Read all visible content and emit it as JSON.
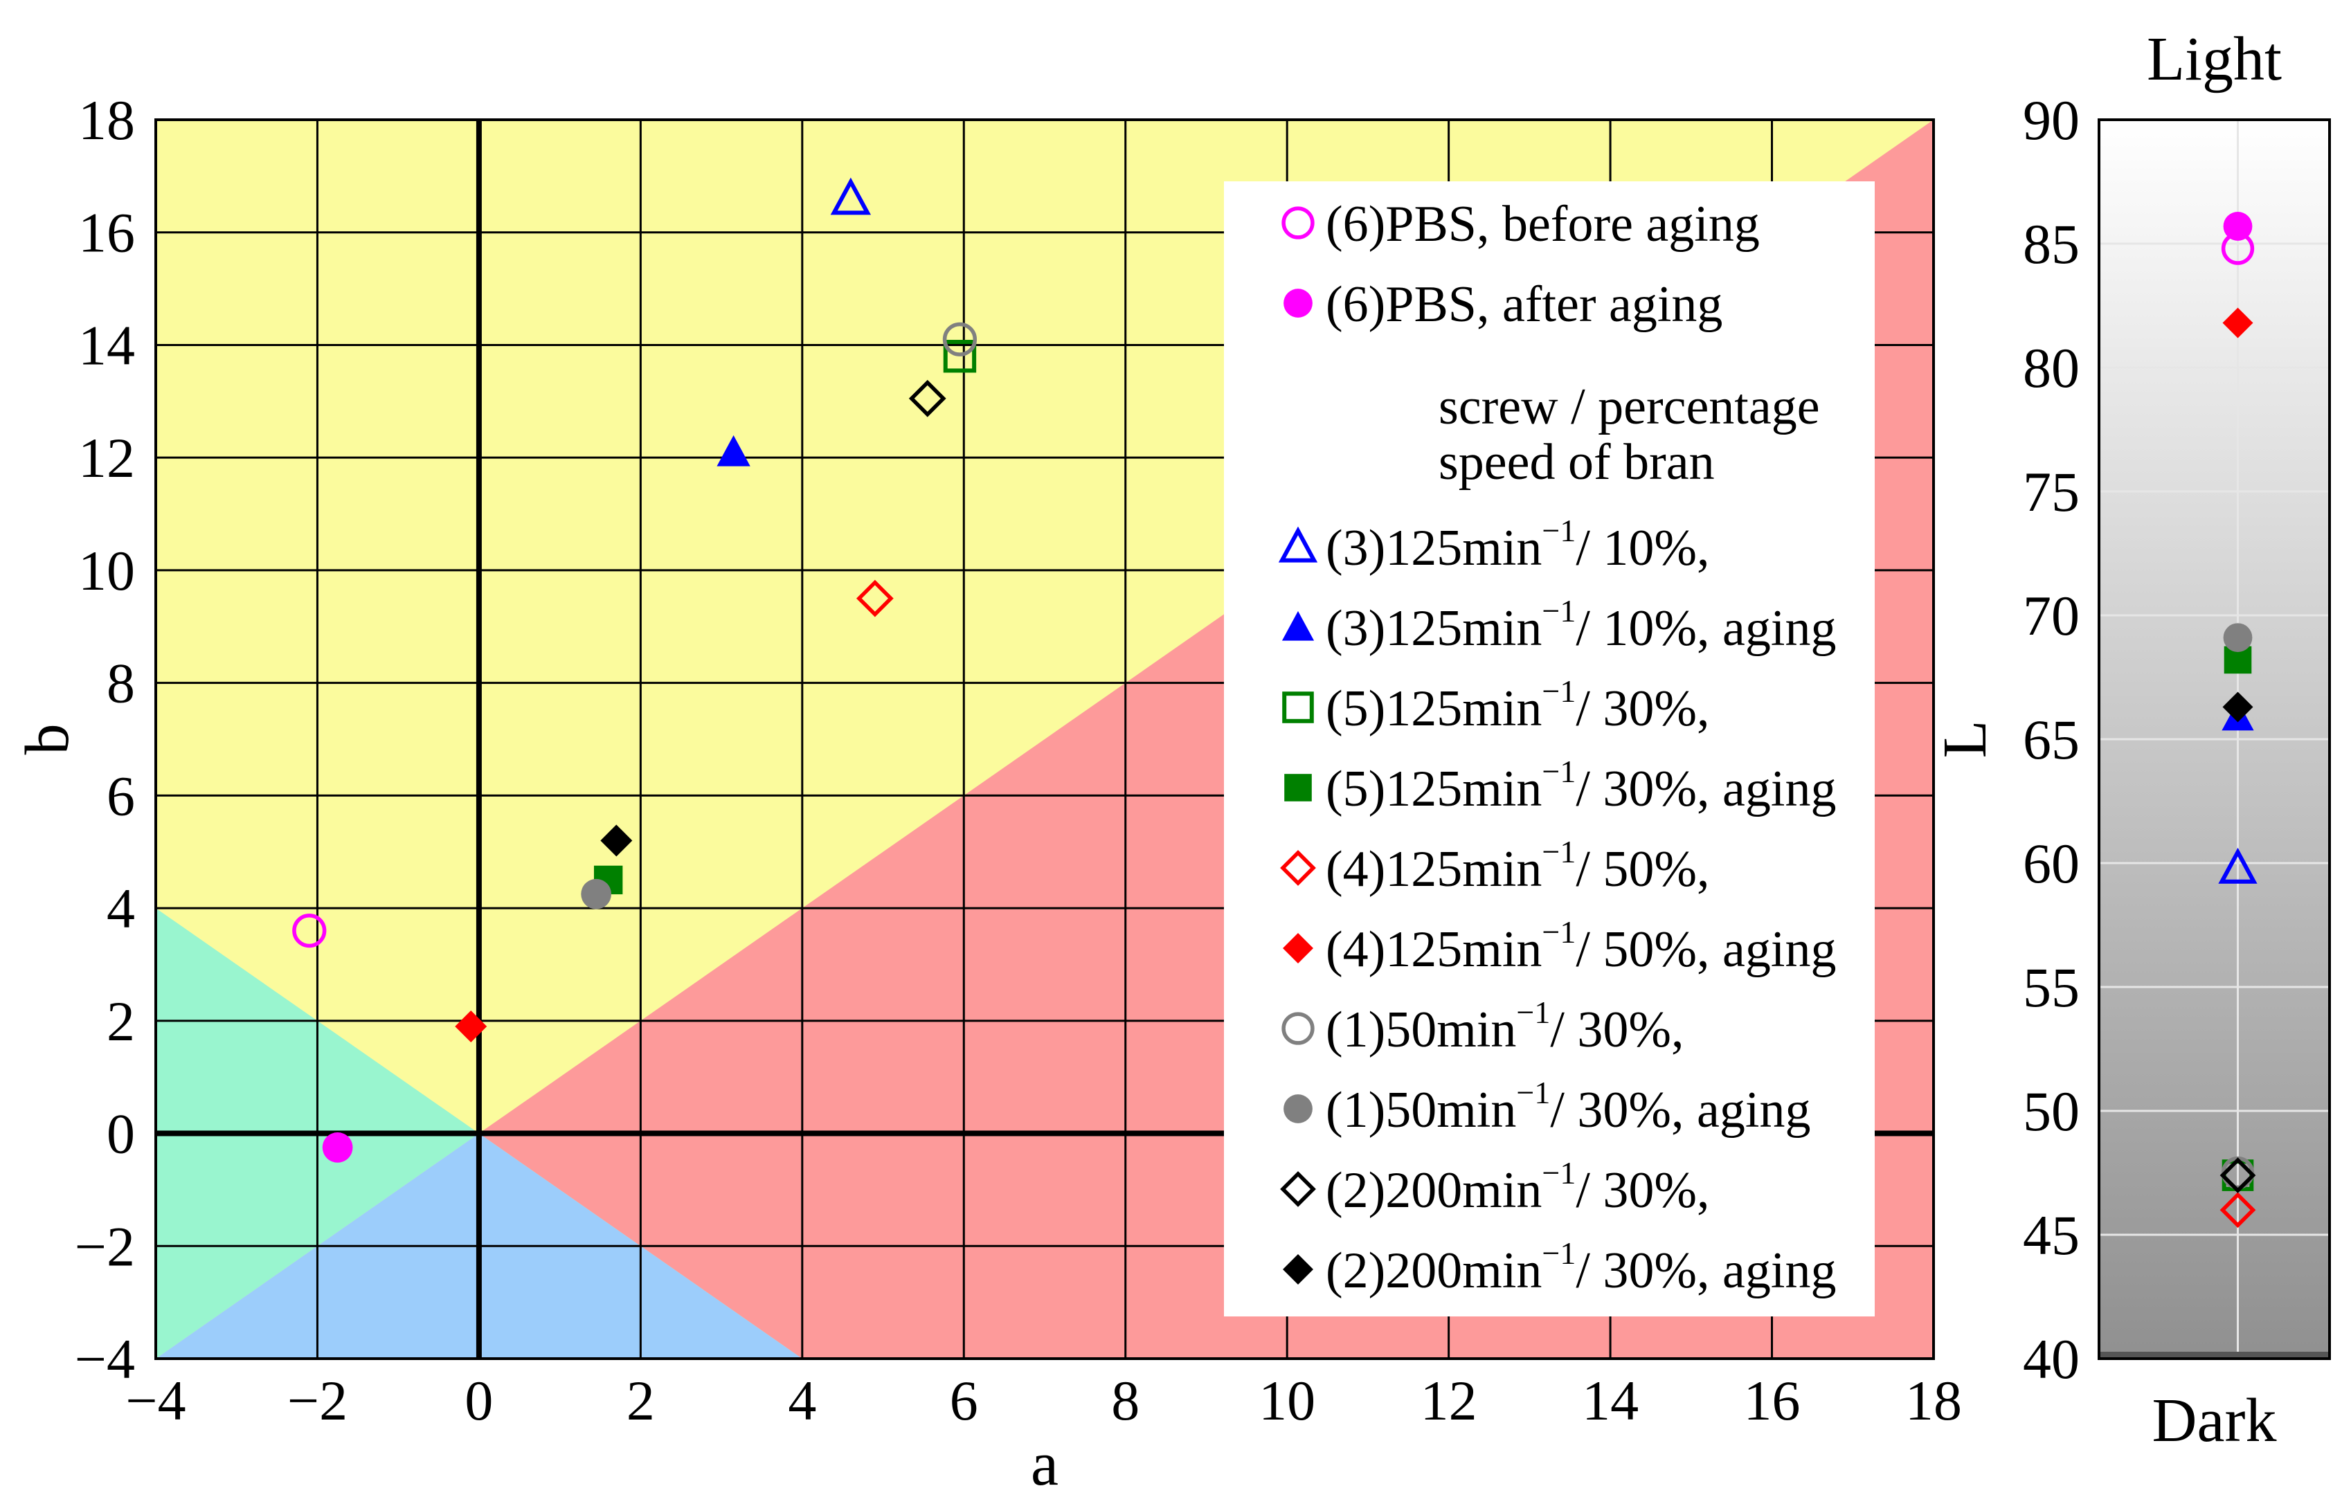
{
  "chart_data": [
    {
      "type": "scatter",
      "title": "",
      "xlabel": "a",
      "ylabel": "b",
      "xlim": [
        -4,
        18
      ],
      "ylim": [
        -4,
        18
      ],
      "xticks": [
        -4,
        -2,
        0,
        2,
        4,
        6,
        8,
        10,
        12,
        14,
        16,
        18
      ],
      "yticks": [
        -4,
        -2,
        0,
        2,
        4,
        6,
        8,
        10,
        12,
        14,
        16,
        18
      ],
      "xtick_labels": [
        "−4",
        "−2",
        "0",
        "2",
        "4",
        "6",
        "8",
        "10",
        "12",
        "14",
        "16",
        "18"
      ],
      "ytick_labels": [
        "−4",
        "−2",
        "0",
        "2",
        "4",
        "6",
        "8",
        "10",
        "12",
        "14",
        "16",
        "18"
      ],
      "grid": true,
      "background_regions": [
        {
          "name": "yellow",
          "color": "#fbfb9d"
        },
        {
          "name": "red",
          "color": "#fd9a9a"
        },
        {
          "name": "green",
          "color": "#99f5cf"
        },
        {
          "name": "blue",
          "color": "#9ccdfb"
        }
      ],
      "legend_position": "right",
      "legend": {
        "entries_top": [
          {
            "key": "pbs_before",
            "label": "(6)PBS, before aging"
          },
          {
            "key": "pbs_after",
            "label": "(6)PBS, after aging"
          }
        ],
        "header": [
          "screw / percentage",
          "speed    of bran"
        ],
        "entries": [
          {
            "key": "s3",
            "prefix": "(3)125min",
            "sup": "−1",
            "suffix": "/ 10%,"
          },
          {
            "key": "s3a",
            "prefix": "(3)125min",
            "sup": "−1",
            "suffix": "/ 10%, aging"
          },
          {
            "key": "s5",
            "prefix": "(5)125min",
            "sup": "−1",
            "suffix": "/ 30%,"
          },
          {
            "key": "s5a",
            "prefix": "(5)125min",
            "sup": "−1",
            "suffix": "/ 30%, aging"
          },
          {
            "key": "s4",
            "prefix": "(4)125min",
            "sup": "−1",
            "suffix": "/ 50%,"
          },
          {
            "key": "s4a",
            "prefix": "(4)125min",
            "sup": "−1",
            "suffix": "/ 50%, aging"
          },
          {
            "key": "s1",
            "prefix": "(1)50min",
            "sup": "−1",
            "suffix": "/ 30%,"
          },
          {
            "key": "s1a",
            "prefix": "(1)50min",
            "sup": "−1",
            "suffix": "/ 30%, aging"
          },
          {
            "key": "s2",
            "prefix": "(2)200min",
            "sup": "−1",
            "suffix": "/ 30%,"
          },
          {
            "key": "s2a",
            "prefix": "(2)200min",
            "sup": "−1",
            "suffix": "/ 30%, aging"
          }
        ]
      },
      "series": [
        {
          "key": "pbs_before",
          "name": "(6)PBS, before aging",
          "marker": "circle",
          "filled": false,
          "color": "#ff00ff",
          "a": -2.1,
          "b": 3.6,
          "L": 84.8
        },
        {
          "key": "pbs_after",
          "name": "(6)PBS, after aging",
          "marker": "circle",
          "filled": true,
          "color": "#ff00ff",
          "a": -1.75,
          "b": -0.25,
          "L": 85.7
        },
        {
          "key": "s3",
          "name": "(3)125min−1/ 10%,",
          "marker": "triangle",
          "filled": false,
          "color": "#0000ff",
          "a": 4.6,
          "b": 16.6,
          "L": 59.8
        },
        {
          "key": "s3a",
          "name": "(3)125min−1/ 10%, aging",
          "marker": "triangle",
          "filled": true,
          "color": "#0000ff",
          "a": 3.15,
          "b": 12.1,
          "L": 65.9
        },
        {
          "key": "s5",
          "name": "(5)125min−1/ 30%,",
          "marker": "square",
          "filled": false,
          "color": "#008000",
          "a": 5.95,
          "b": 13.8,
          "L": 47.4
        },
        {
          "key": "s5a",
          "name": "(5)125min−1/ 30%, aging",
          "marker": "square",
          "filled": true,
          "color": "#008000",
          "a": 1.6,
          "b": 4.5,
          "L": 68.2
        },
        {
          "key": "s4",
          "name": "(4)125min−1/ 50%,",
          "marker": "diamond",
          "filled": false,
          "color": "#ff0000",
          "a": 4.9,
          "b": 9.5,
          "L": 46.0
        },
        {
          "key": "s4a",
          "name": "(4)125min−1/ 50%, aging",
          "marker": "diamond",
          "filled": true,
          "color": "#ff0000",
          "a": -0.1,
          "b": 1.9,
          "L": 81.8
        },
        {
          "key": "s1",
          "name": "(1)50min−1/ 30%,",
          "marker": "circle",
          "filled": false,
          "color": "#808080",
          "a": 5.95,
          "b": 14.1,
          "L": 47.5
        },
        {
          "key": "s1a",
          "name": "(1)50min−1/ 30%, aging",
          "marker": "circle",
          "filled": true,
          "color": "#808080",
          "a": 1.45,
          "b": 4.25,
          "L": 69.1
        },
        {
          "key": "s2",
          "name": "(2)200min−1/ 30%,",
          "marker": "diamond",
          "filled": false,
          "color": "#000000",
          "a": 5.55,
          "b": 13.05,
          "L": 47.4
        },
        {
          "key": "s2a",
          "name": "(2)200min−1/ 30%, aging",
          "marker": "diamond",
          "filled": true,
          "color": "#000000",
          "a": 1.7,
          "b": 5.2,
          "L": 66.3
        }
      ]
    },
    {
      "type": "scatter",
      "title": "Light",
      "bottom_label": "Dark",
      "ylabel": "L",
      "ylim": [
        40,
        90
      ],
      "yticks": [
        40,
        45,
        50,
        55,
        60,
        65,
        70,
        75,
        80,
        85,
        90
      ],
      "ytick_labels": [
        "40",
        "45",
        "50",
        "55",
        "60",
        "65",
        "70",
        "75",
        "80",
        "85",
        "90"
      ],
      "grid": true,
      "gradient": [
        "#ffffff",
        "#909090"
      ],
      "values_from": "series.L"
    }
  ]
}
